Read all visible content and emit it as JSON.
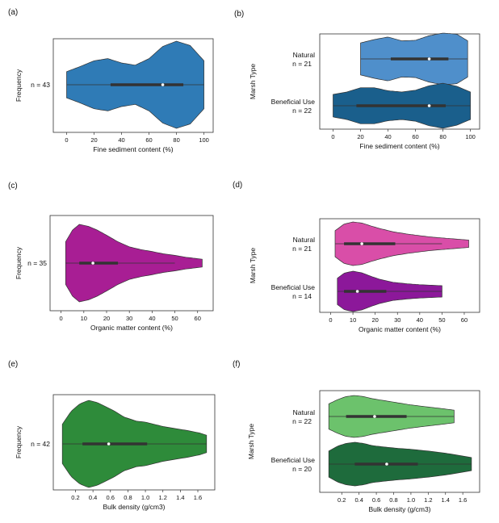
{
  "chart_data": [
    {
      "id": "a",
      "panel_label": "(a)",
      "type": "violin",
      "xlabel": "Fine sediment content (%)",
      "ylabel": "Frequency",
      "xlim": [
        -5,
        102
      ],
      "xticks": [
        0,
        20,
        40,
        60,
        80,
        100
      ],
      "series": [
        {
          "name": "n = 43",
          "color": "#2f7bb6",
          "min": 0,
          "q1": 32,
          "median": 70,
          "q3": 85,
          "max": 100,
          "density": [
            [
              0,
              0.3
            ],
            [
              10,
              0.42
            ],
            [
              20,
              0.55
            ],
            [
              30,
              0.6
            ],
            [
              40,
              0.5
            ],
            [
              50,
              0.45
            ],
            [
              60,
              0.6
            ],
            [
              70,
              0.88
            ],
            [
              80,
              1.0
            ],
            [
              90,
              0.9
            ],
            [
              100,
              0.55
            ]
          ]
        }
      ]
    },
    {
      "id": "b",
      "panel_label": "(b)",
      "type": "violin",
      "xlabel": "Fine sediment content (%)",
      "ylabel": "Marsh Type",
      "xlim": [
        -5,
        102
      ],
      "xticks": [
        0,
        20,
        40,
        60,
        80,
        100
      ],
      "series": [
        {
          "name": "Natural",
          "count": "n = 21",
          "color": "#4f8fcb",
          "min": 20,
          "q1": 42,
          "median": 70,
          "q3": 84,
          "max": 98,
          "density": [
            [
              20,
              0.62
            ],
            [
              30,
              0.75
            ],
            [
              40,
              0.85
            ],
            [
              50,
              0.7
            ],
            [
              60,
              0.72
            ],
            [
              70,
              0.9
            ],
            [
              80,
              1.0
            ],
            [
              90,
              0.96
            ],
            [
              98,
              0.7
            ]
          ]
        },
        {
          "name": "Beneficial Use",
          "count": "n = 22",
          "color": "#1a5f8c",
          "min": 0,
          "q1": 17,
          "median": 70,
          "q3": 82,
          "max": 100,
          "density": [
            [
              0,
              0.45
            ],
            [
              10,
              0.55
            ],
            [
              20,
              0.72
            ],
            [
              30,
              0.72
            ],
            [
              40,
              0.6
            ],
            [
              50,
              0.55
            ],
            [
              60,
              0.62
            ],
            [
              70,
              0.8
            ],
            [
              80,
              0.9
            ],
            [
              90,
              0.78
            ],
            [
              100,
              0.55
            ]
          ]
        }
      ]
    },
    {
      "id": "c",
      "panel_label": "(c)",
      "type": "violin",
      "xlabel": "Organic matter content (%)",
      "ylabel": "Frequency",
      "xlim": [
        -2,
        64
      ],
      "xticks": [
        0,
        10,
        20,
        30,
        40,
        50,
        60
      ],
      "series": [
        {
          "name": "n = 35",
          "color": "#a81e94",
          "min": 2,
          "q1": 8,
          "median": 14,
          "q3": 25,
          "max": 50,
          "density": [
            [
              2,
              0.55
            ],
            [
              5,
              0.85
            ],
            [
              8,
              1.0
            ],
            [
              12,
              0.95
            ],
            [
              16,
              0.85
            ],
            [
              20,
              0.72
            ],
            [
              25,
              0.55
            ],
            [
              30,
              0.42
            ],
            [
              35,
              0.35
            ],
            [
              40,
              0.3
            ],
            [
              45,
              0.24
            ],
            [
              50,
              0.2
            ],
            [
              55,
              0.15
            ],
            [
              58,
              0.13
            ],
            [
              62,
              0.1
            ]
          ]
        }
      ]
    },
    {
      "id": "d",
      "panel_label": "(d)",
      "type": "violin",
      "xlabel": "Organic matter content (%)",
      "ylabel": "Marsh Type",
      "xlim": [
        -2,
        64
      ],
      "xticks": [
        0,
        10,
        20,
        30,
        40,
        50,
        60
      ],
      "series": [
        {
          "name": "Natural",
          "count": "n = 21",
          "color": "#d94ea8",
          "min": 2,
          "q1": 6,
          "median": 14,
          "q3": 29,
          "max": 50,
          "density": [
            [
              2,
              0.6
            ],
            [
              6,
              0.9
            ],
            [
              10,
              1.0
            ],
            [
              14,
              0.95
            ],
            [
              18,
              0.82
            ],
            [
              22,
              0.7
            ],
            [
              28,
              0.55
            ],
            [
              34,
              0.45
            ],
            [
              40,
              0.37
            ],
            [
              46,
              0.3
            ],
            [
              52,
              0.25
            ],
            [
              58,
              0.2
            ],
            [
              62,
              0.17
            ]
          ]
        },
        {
          "name": "Beneficial Use",
          "count": "n = 14",
          "color": "#8c189a",
          "min": 3,
          "q1": 6,
          "median": 12,
          "q3": 25,
          "max": 50,
          "density": [
            [
              3,
              0.65
            ],
            [
              6,
              0.9
            ],
            [
              10,
              1.0
            ],
            [
              14,
              0.92
            ],
            [
              18,
              0.75
            ],
            [
              22,
              0.6
            ],
            [
              28,
              0.45
            ],
            [
              34,
              0.38
            ],
            [
              40,
              0.33
            ],
            [
              46,
              0.3
            ],
            [
              50,
              0.28
            ]
          ]
        }
      ]
    },
    {
      "id": "e",
      "panel_label": "(e)",
      "type": "violin",
      "xlabel": "Bulk density (g/cm3)",
      "ylabel": "Frequency",
      "xlim": [
        0.02,
        1.72
      ],
      "xticks": [
        0.2,
        0.4,
        0.6,
        0.8,
        1.0,
        1.2,
        1.4,
        1.6
      ],
      "xtick_labels": [
        "0.2",
        "0.4",
        "0.6",
        "0.8",
        "1.0",
        "1.2",
        "1.4",
        "1.6"
      ],
      "series": [
        {
          "name": "n = 42",
          "color": "#2e8b3a",
          "min": 0.05,
          "q1": 0.28,
          "median": 0.58,
          "q3": 1.02,
          "max": 1.7,
          "density": [
            [
              0.05,
              0.45
            ],
            [
              0.15,
              0.75
            ],
            [
              0.25,
              0.92
            ],
            [
              0.35,
              1.0
            ],
            [
              0.45,
              0.95
            ],
            [
              0.55,
              0.85
            ],
            [
              0.65,
              0.75
            ],
            [
              0.75,
              0.62
            ],
            [
              0.9,
              0.52
            ],
            [
              1.0,
              0.5
            ],
            [
              1.1,
              0.45
            ],
            [
              1.2,
              0.4
            ],
            [
              1.35,
              0.35
            ],
            [
              1.5,
              0.3
            ],
            [
              1.62,
              0.25
            ],
            [
              1.7,
              0.2
            ]
          ]
        }
      ]
    },
    {
      "id": "f",
      "panel_label": "(f)",
      "type": "violin",
      "xlabel": "Bulk density (g/cm3)",
      "ylabel": "Marsh Type",
      "xlim": [
        0.02,
        1.72
      ],
      "xticks": [
        0.2,
        0.4,
        0.6,
        0.8,
        1.0,
        1.2,
        1.4,
        1.6
      ],
      "xtick_labels": [
        "0.2",
        "0.4",
        "0.6",
        "0.8",
        "1.0",
        "1.2",
        "1.4",
        "1.6"
      ],
      "series": [
        {
          "name": "Natural",
          "count": "n = 22",
          "color": "#6cc26c",
          "min": 0.05,
          "q1": 0.25,
          "median": 0.58,
          "q3": 0.95,
          "max": 1.5,
          "density": [
            [
              0.05,
              0.6
            ],
            [
              0.15,
              0.8
            ],
            [
              0.25,
              0.95
            ],
            [
              0.35,
              1.0
            ],
            [
              0.45,
              0.95
            ],
            [
              0.55,
              0.85
            ],
            [
              0.7,
              0.75
            ],
            [
              0.85,
              0.65
            ],
            [
              1.0,
              0.55
            ],
            [
              1.2,
              0.45
            ],
            [
              1.35,
              0.38
            ],
            [
              1.5,
              0.3
            ]
          ]
        },
        {
          "name": "Beneficial Use",
          "count": "n = 20",
          "color": "#1e6b3c",
          "min": 0.05,
          "q1": 0.35,
          "median": 0.72,
          "q3": 1.08,
          "max": 1.7,
          "density": [
            [
              0.05,
              0.6
            ],
            [
              0.15,
              0.82
            ],
            [
              0.25,
              0.95
            ],
            [
              0.35,
              1.0
            ],
            [
              0.45,
              0.95
            ],
            [
              0.55,
              0.85
            ],
            [
              0.7,
              0.78
            ],
            [
              0.85,
              0.72
            ],
            [
              1.0,
              0.68
            ],
            [
              1.2,
              0.6
            ],
            [
              1.4,
              0.5
            ],
            [
              1.55,
              0.4
            ],
            [
              1.7,
              0.3
            ]
          ]
        }
      ]
    }
  ]
}
